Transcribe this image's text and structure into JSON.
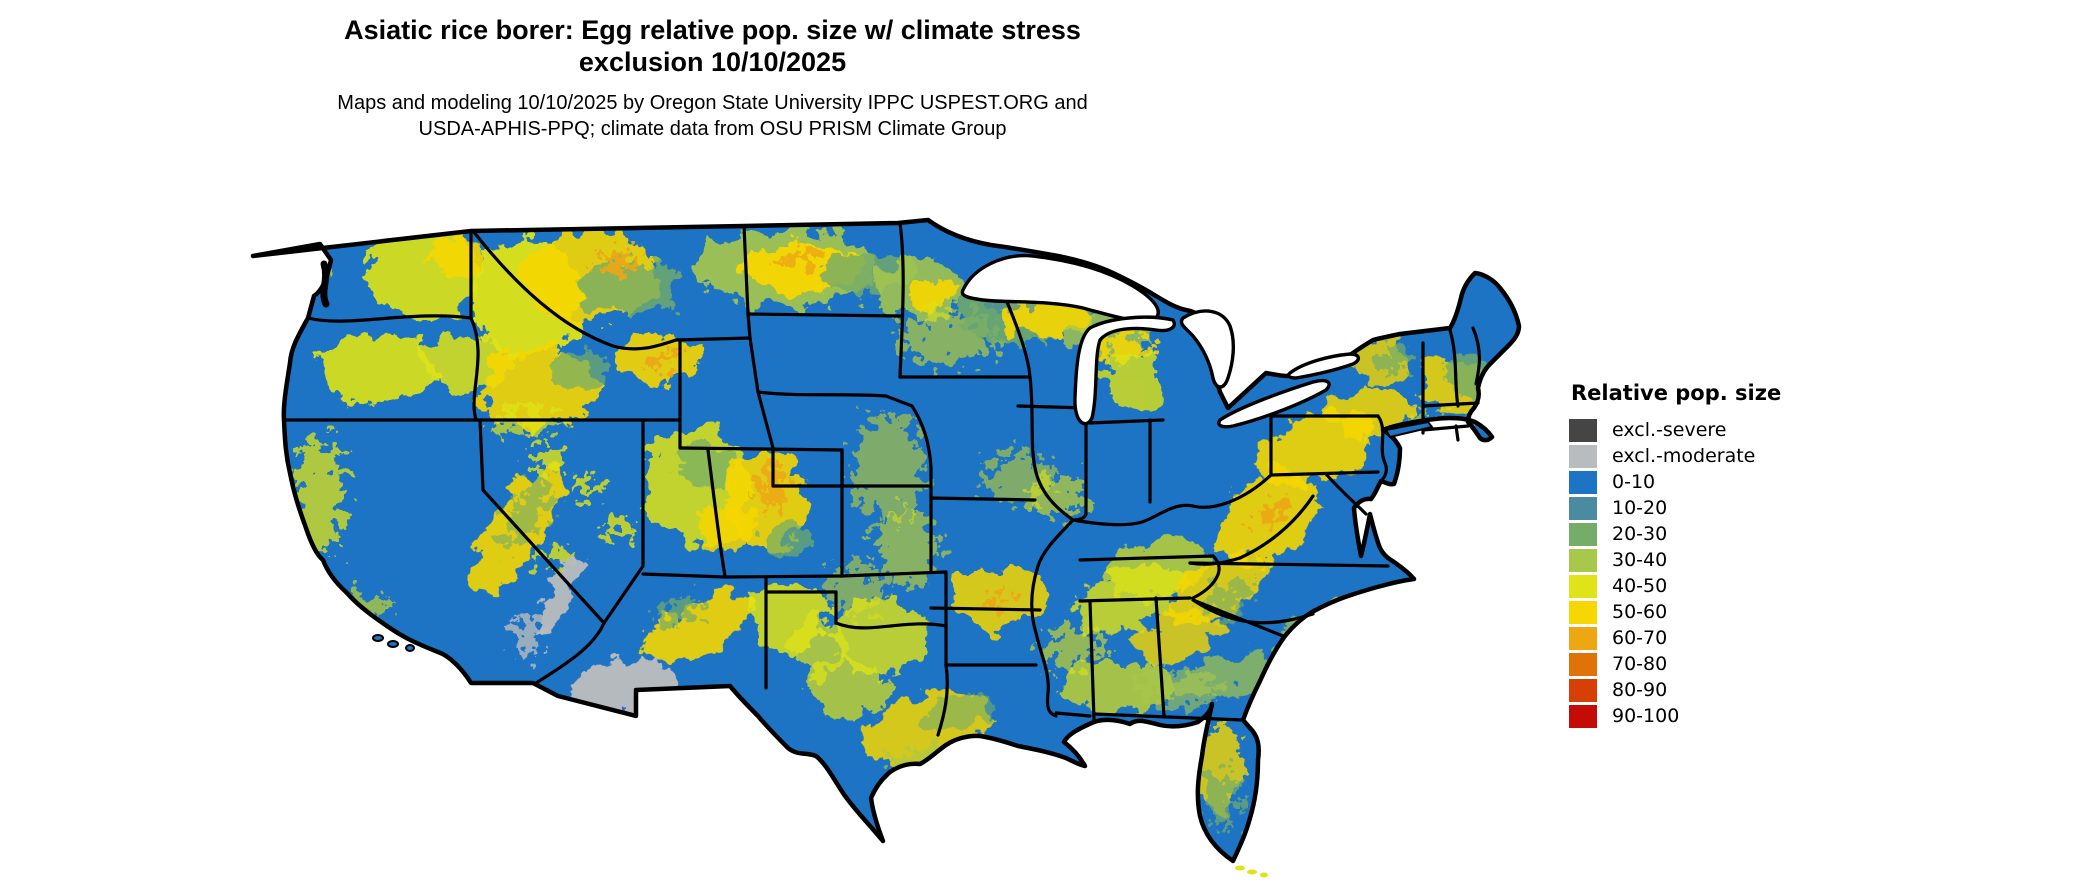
{
  "header": {
    "title_line1": "Asiatic rice borer: Egg relative pop. size w/ climate stress",
    "title_line2": "exclusion 10/10/2025",
    "subtitle_line1": "Maps and modeling 10/10/2025 by Oregon State University IPPC USPEST.ORG and",
    "subtitle_line2": "USDA-APHIS-PPQ; climate data from OSU PRISM Climate Group"
  },
  "legend": {
    "title": "Relative pop. size",
    "entries": [
      {
        "label": "excl.-severe",
        "color": "#454545"
      },
      {
        "label": "excl.-moderate",
        "color": "#b9bcbe"
      },
      {
        "label": "0-10",
        "color": "#1d73c4"
      },
      {
        "label": "10-20",
        "color": "#4b8ba1"
      },
      {
        "label": "20-30",
        "color": "#74ad68"
      },
      {
        "label": "30-40",
        "color": "#a8c84c"
      },
      {
        "label": "40-50",
        "color": "#dfe418"
      },
      {
        "label": "50-60",
        "color": "#f6d702"
      },
      {
        "label": "60-70",
        "color": "#eda713"
      },
      {
        "label": "70-80",
        "color": "#e07207"
      },
      {
        "label": "80-90",
        "color": "#d63f06"
      },
      {
        "label": "90-100",
        "color": "#c50b06"
      }
    ]
  },
  "map": {
    "region": "Contiguous United States",
    "base_color": "#1d73c4",
    "border_color": "#000000",
    "water_color": "#ffffff",
    "exclusion_color": "#b9bcbe"
  }
}
